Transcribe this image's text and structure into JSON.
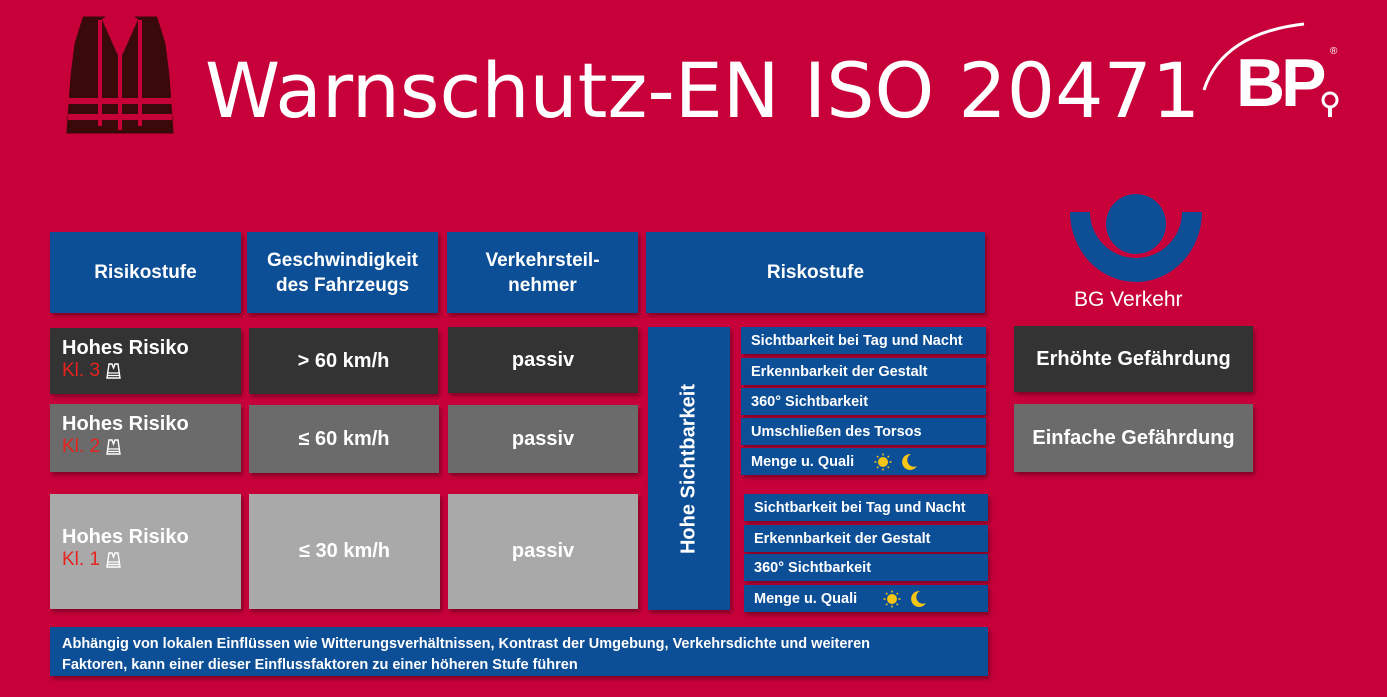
{
  "title": "Warnschutz-EN ISO 20471",
  "logo": {
    "brand": "BP",
    "registered": "®"
  },
  "bg_logo": {
    "label": "BG Verkehr"
  },
  "header": {
    "col1": "Risikostufe",
    "col2_line1": "Geschwindigkeit",
    "col2_line2": "des Fahrzeugs",
    "col3_line1": "Verkehrsteil-",
    "col3_line2": "nehmer",
    "col4": "Riskostufe"
  },
  "rows": [
    {
      "risk": "Hohes Risiko",
      "class": "Kl. 3",
      "speed": "> 60 km/h",
      "participant": "passiv"
    },
    {
      "risk": "Hohes Risiko",
      "class": "Kl. 2",
      "speed": "≤ 60 km/h",
      "participant": "passiv"
    },
    {
      "risk": "Hohes Risiko",
      "class": "Kl. 1",
      "speed": "≤ 30 km/h",
      "participant": "passiv"
    }
  ],
  "vertical_label": "Hohe Sichtbarkeit",
  "criteria_group1": [
    "Sichtbarkeit bei Tag und Nacht",
    "Erkennbarkeit der Gestalt",
    "360° Sichtbarkeit",
    "Umschließen des Torsos",
    "Menge u. Quali"
  ],
  "criteria_group2": [
    "Sichtbarkeit bei Tag und Nacht",
    "Erkennbarkeit der Gestalt",
    "360° Sichtbarkeit",
    "Menge u. Quali"
  ],
  "hazard": {
    "high": "Erhöhte Gefährdung",
    "simple": "Einfache Gefährdung"
  },
  "note_line1": "Abhängig von lokalen Einflüssen wie Witterungsverhältnissen, Kontrast der Umgebung, Verkehrsdichte und weiteren",
  "note_line2": "Faktoren, kann einer dieser Einflussfaktoren zu einer höheren Stufe führen",
  "colors": {
    "background": "#c8003a",
    "blue": "#0d4f96",
    "dark": "#333333",
    "mid": "#6b6b6b",
    "light": "#a9a9a9",
    "class_red": "#e8221e"
  }
}
